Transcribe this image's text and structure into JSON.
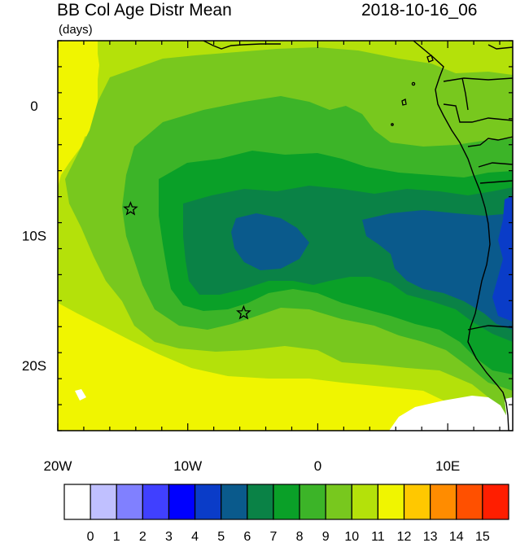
{
  "header": {
    "title": "BB Col Age Distr Mean",
    "units": "(days)",
    "timestamp": "2018-10-16_06"
  },
  "map": {
    "lon_range": [
      -20,
      15
    ],
    "lat_range": [
      -25,
      5
    ],
    "x_ticks": [
      {
        "lon": -20,
        "label": "20W"
      },
      {
        "lon": -10,
        "label": "10W"
      },
      {
        "lon": 0,
        "label": "0"
      },
      {
        "lon": 10,
        "label": "10E"
      }
    ],
    "y_ticks": [
      {
        "lat": 0,
        "label": "0"
      },
      {
        "lat": -10,
        "label": "10S"
      },
      {
        "lat": -20,
        "label": "20S"
      }
    ],
    "markers": [
      {
        "name": "star-marker-ascension",
        "lon": -14.4,
        "lat": -7.95
      },
      {
        "name": "star-marker-st-helena",
        "lon": -5.7,
        "lat": -15.95
      }
    ],
    "field_description_colors": {
      "land_mask": "#ffffff",
      "coast_line": "#000000"
    }
  },
  "colorbar": {
    "labels": [
      "0",
      "1",
      "2",
      "3",
      "4",
      "5",
      "6",
      "7",
      "8",
      "9",
      "10",
      "11",
      "12",
      "13",
      "14",
      "15"
    ],
    "colors": [
      "#ffffff",
      "#c0c0ff",
      "#8080ff",
      "#4040ff",
      "#0000ff",
      "#0a3cc8",
      "#0a5a8c",
      "#0a8246",
      "#0aa028",
      "#3cb428",
      "#78c81e",
      "#b4e10a",
      "#f0f500",
      "#ffc800",
      "#ff8c00",
      "#ff5000",
      "#ff1e00"
    ]
  },
  "palette": {
    "c5": "#0a3cc8",
    "c6": "#0a5a8c",
    "c7": "#0a8246",
    "c8": "#0aa028",
    "c9": "#3cb428",
    "c10": "#78c81e",
    "c11": "#b4e10a",
    "c12": "#f0f500"
  }
}
